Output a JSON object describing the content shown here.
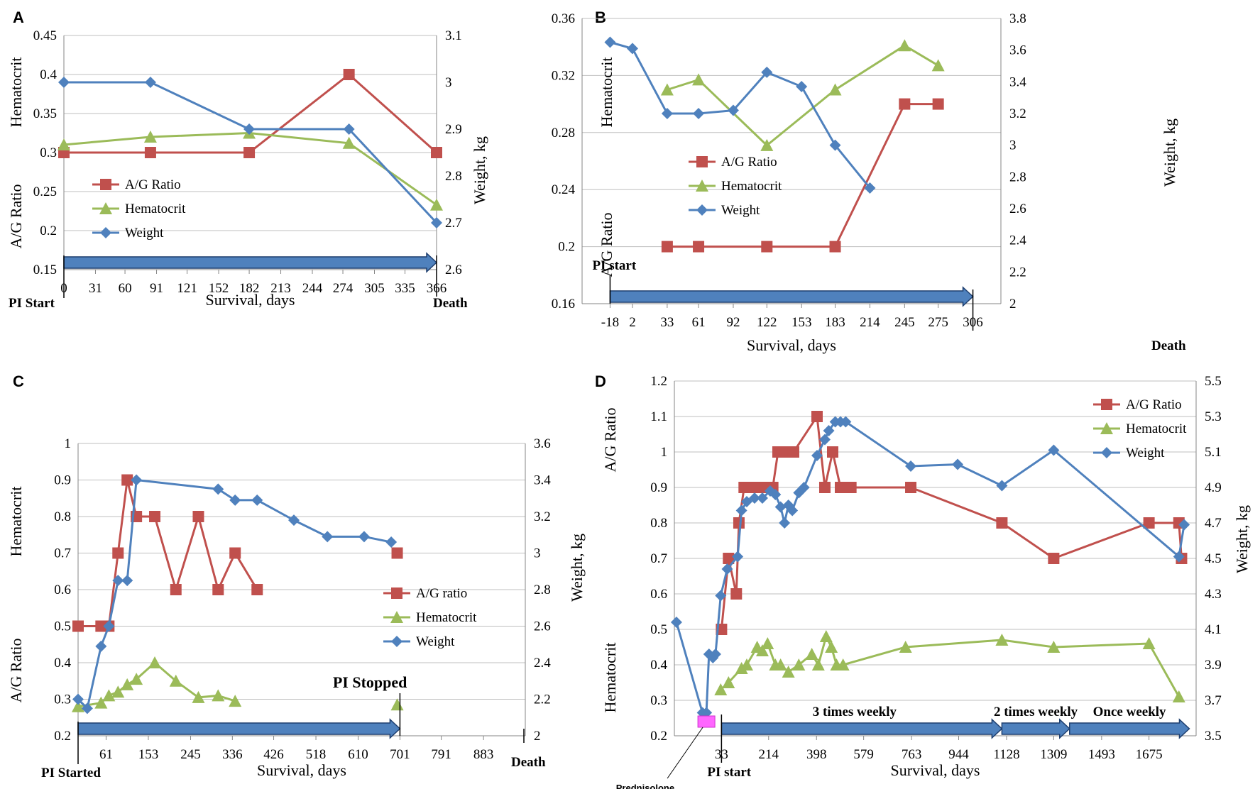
{
  "chart_data": [
    {
      "panel": "A",
      "type": "line",
      "xlabel": "Survival, days",
      "y_left_label_top": "Hematocrit",
      "y_left_label_bottom": "A/G Ratio",
      "y_right_label": "Weight, kg",
      "x_ticks": [
        "0",
        "31",
        "60",
        "91",
        "121",
        "152",
        "182",
        "213",
        "244",
        "274",
        "305",
        "335",
        "366"
      ],
      "x_range": [
        0,
        366
      ],
      "ylim_left": [
        0.15,
        0.45
      ],
      "left_ticks": [
        "0.15",
        "0.2",
        "0.25",
        "0.3",
        "0.35",
        "0.4",
        "0.45"
      ],
      "ylim_right": [
        2.6,
        3.1
      ],
      "right_ticks": [
        "2.6",
        "2.7",
        "2.8",
        "2.9",
        "3",
        "3.1"
      ],
      "series": [
        {
          "name": "A/G Ratio",
          "axis": "left",
          "marker": "square",
          "color": "#c0504d",
          "x": [
            0,
            85,
            182,
            280,
            366
          ],
          "y": [
            0.3,
            0.3,
            0.3,
            0.4,
            0.3
          ]
        },
        {
          "name": "Hematocrit",
          "axis": "left",
          "marker": "triangle",
          "color": "#9bbb59",
          "x": [
            0,
            85,
            182,
            280,
            366
          ],
          "y": [
            0.31,
            0.32,
            0.325,
            0.312,
            0.233
          ]
        },
        {
          "name": "Weight",
          "axis": "right",
          "marker": "diamond",
          "color": "#4f81bd",
          "x": [
            0,
            85,
            182,
            280,
            366
          ],
          "y": [
            3.0,
            3.0,
            2.9,
            2.9,
            2.7
          ]
        }
      ],
      "arrows": [
        {
          "x1": 0,
          "x2": 366,
          "label": ""
        }
      ],
      "annotations": {
        "start": "PI Start",
        "end": "Death"
      }
    },
    {
      "panel": "B",
      "type": "line",
      "xlabel": "Survival, days",
      "y_left_label_top": "Hematocrit",
      "y_left_label_bottom": "A/G Ratio",
      "y_right_label": "Weight, kg",
      "x_ticks": [
        "-18",
        "2",
        "33",
        "61",
        "92",
        "122",
        "153",
        "183",
        "214",
        "245",
        "275",
        "306"
      ],
      "x_range": [
        -43,
        331
      ],
      "ylim_left": [
        0.16,
        0.36
      ],
      "left_ticks": [
        "0.16",
        "0.2",
        "0.24",
        "0.28",
        "0.32",
        "0.36"
      ],
      "ylim_right": [
        2,
        3.8
      ],
      "right_ticks": [
        "2",
        "2.2",
        "2.4",
        "2.6",
        "2.8",
        "3",
        "3.2",
        "3.4",
        "3.6",
        "3.8"
      ],
      "series": [
        {
          "name": "A/G Ratio",
          "axis": "left",
          "marker": "square",
          "color": "#c0504d",
          "x": [
            33,
            61,
            122,
            183,
            245,
            275
          ],
          "y": [
            0.2,
            0.2,
            0.2,
            0.2,
            0.3,
            0.3
          ]
        },
        {
          "name": "Hematocrit",
          "axis": "left",
          "marker": "triangle",
          "color": "#9bbb59",
          "x": [
            33,
            61,
            122,
            183,
            245,
            275
          ],
          "y": [
            0.31,
            0.317,
            0.271,
            0.31,
            0.341,
            0.327
          ]
        },
        {
          "name": "Weight",
          "axis": "right",
          "marker": "diamond",
          "color": "#4f81bd",
          "x": [
            -18,
            2,
            33,
            61,
            92,
            122,
            153,
            183,
            214
          ],
          "y": [
            3.65,
            3.61,
            3.2,
            3.2,
            3.22,
            3.46,
            3.37,
            3.0,
            2.73
          ]
        }
      ],
      "arrows": [
        {
          "x1": -18,
          "x2": 306,
          "label": ""
        }
      ],
      "annotations": {
        "start": "PI start",
        "end": "Death"
      }
    },
    {
      "panel": "C",
      "type": "line",
      "xlabel": "Survival, days",
      "y_left_label_top": "Hematocrit",
      "y_left_label_bottom": "A/G Ratio",
      "y_right_label": "Weight, kg",
      "x_ticks": [
        "61",
        "153",
        "245",
        "336",
        "426",
        "518",
        "610",
        "701",
        "791",
        "883"
      ],
      "x_range": [
        0,
        974
      ],
      "ylim_left": [
        0.2,
        1.0
      ],
      "left_ticks": [
        "0.2",
        "0.3",
        "0.4",
        "0.5",
        "0.6",
        "0.7",
        "0.8",
        "0.9",
        "1"
      ],
      "ylim_right": [
        2,
        3.6
      ],
      "right_ticks": [
        "2",
        "2.2",
        "2.4",
        "2.6",
        "2.8",
        "3",
        "3.2",
        "3.4",
        "3.6"
      ],
      "series": [
        {
          "name": "A/G ratio",
          "axis": "left",
          "marker": "square",
          "color": "#c0504d",
          "x": [
            0,
            50,
            67,
            87,
            107,
            127,
            167,
            213,
            262,
            305,
            342,
            390,
            470,
            695
          ],
          "y": [
            0.5,
            0.5,
            0.5,
            0.7,
            0.9,
            0.8,
            0.8,
            0.6,
            0.8,
            0.6,
            0.7,
            0.6,
            null,
            0.7
          ]
        },
        {
          "name": "Hematocrit",
          "axis": "left",
          "marker": "triangle",
          "color": "#9bbb59",
          "x": [
            0,
            50,
            67,
            87,
            107,
            127,
            167,
            213,
            262,
            305,
            342,
            390,
            470,
            695
          ],
          "y": [
            0.28,
            0.29,
            0.31,
            0.32,
            0.34,
            0.355,
            0.4,
            0.35,
            0.305,
            0.31,
            0.295,
            null,
            null,
            0.285
          ]
        },
        {
          "name": "Weight",
          "axis": "right",
          "marker": "diamond",
          "color": "#4f81bd",
          "x": [
            0,
            20,
            50,
            67,
            87,
            107,
            127,
            305,
            342,
            390,
            470,
            543,
            623,
            682
          ],
          "y": [
            2.2,
            2.15,
            2.49,
            2.6,
            2.85,
            2.85,
            3.4,
            3.35,
            3.29,
            3.29,
            3.18,
            3.09,
            3.09,
            3.06
          ]
        }
      ],
      "arrows": [
        {
          "x1": 0,
          "x2": 701,
          "label": ""
        }
      ],
      "annotations": {
        "start": "PI Started",
        "stopped": "PI Stopped",
        "end": "Death"
      }
    },
    {
      "panel": "D",
      "type": "line",
      "xlabel": "Survival, days",
      "y_left_label_top": "A/G Ratio",
      "y_left_label_bottom": "Hematocrit",
      "y_right_label": "Weight, kg",
      "x_ticks": [
        "33",
        "214",
        "398",
        "579",
        "763",
        "944",
        "1128",
        "1309",
        "1493",
        "1675"
      ],
      "x_range": [
        -148,
        1856
      ],
      "ylim_left": [
        0.2,
        1.2
      ],
      "left_ticks": [
        "0.2",
        "0.3",
        "0.4",
        "0.5",
        "0.6",
        "0.7",
        "0.8",
        "0.9",
        "1",
        "1.1",
        "1.2"
      ],
      "ylim_right": [
        3.5,
        5.5
      ],
      "right_ticks": [
        "3.5",
        "3.7",
        "3.9",
        "4.1",
        "4.3",
        "4.5",
        "4.7",
        "4.9",
        "5.1",
        "5.3",
        "5.5"
      ],
      "series": [
        {
          "name": "A/G Ratio",
          "axis": "left",
          "marker": "square",
          "color": "#c0504d",
          "x": [
            33,
            60,
            90,
            100,
            120,
            140,
            170,
            200,
            230,
            250,
            280,
            310,
            400,
            430,
            460,
            490,
            530,
            760,
            1110,
            1309,
            1675,
            1790,
            1800
          ],
          "y": [
            0.5,
            0.7,
            0.6,
            0.8,
            0.9,
            0.9,
            0.9,
            0.9,
            0.9,
            1.0,
            1.0,
            1.0,
            1.1,
            0.9,
            1.0,
            0.9,
            0.9,
            0.9,
            0.8,
            0.7,
            0.8,
            0.8,
            0.7
          ]
        },
        {
          "name": "Hematocrit",
          "axis": "left",
          "marker": "triangle",
          "color": "#9bbb59",
          "x": [
            30,
            60,
            110,
            130,
            170,
            190,
            210,
            240,
            260,
            290,
            330,
            380,
            405,
            435,
            455,
            475,
            500,
            740,
            1110,
            1309,
            1675,
            1790
          ],
          "y": [
            0.33,
            0.35,
            0.39,
            0.4,
            0.45,
            0.44,
            0.46,
            0.4,
            0.4,
            0.38,
            0.4,
            0.43,
            0.4,
            0.48,
            0.45,
            0.4,
            0.4,
            0.45,
            0.47,
            0.45,
            0.46,
            0.31
          ]
        },
        {
          "name": "Weight",
          "axis": "right",
          "marker": "diamond",
          "color": "#4f81bd",
          "x": [
            -140,
            -40,
            -25,
            -15,
            0,
            10,
            30,
            55,
            95,
            110,
            130,
            160,
            190,
            220,
            240,
            260,
            275,
            290,
            305,
            330,
            350,
            400,
            430,
            445,
            470,
            490,
            510,
            760,
            940,
            1110,
            1309,
            1790,
            1810
          ],
          "y": [
            4.14,
            3.63,
            3.63,
            3.96,
            3.94,
            3.96,
            4.29,
            4.44,
            4.51,
            4.77,
            4.82,
            4.84,
            4.84,
            4.88,
            4.86,
            4.79,
            4.7,
            4.8,
            4.77,
            4.87,
            4.9,
            5.08,
            5.17,
            5.22,
            5.27,
            5.27,
            5.27,
            5.02,
            5.03,
            4.91,
            5.11,
            4.51,
            4.69
          ]
        }
      ],
      "arrows": [
        {
          "x1": 33,
          "x2": 1110,
          "label": "3 times weekly"
        },
        {
          "x1": 1110,
          "x2": 1370,
          "label": "2 times weekly"
        },
        {
          "x1": 1370,
          "x2": 1830,
          "label": "Once weekly"
        }
      ],
      "annotations": {
        "start": "PI start",
        "prednisolone": "Prednisolone"
      }
    }
  ]
}
